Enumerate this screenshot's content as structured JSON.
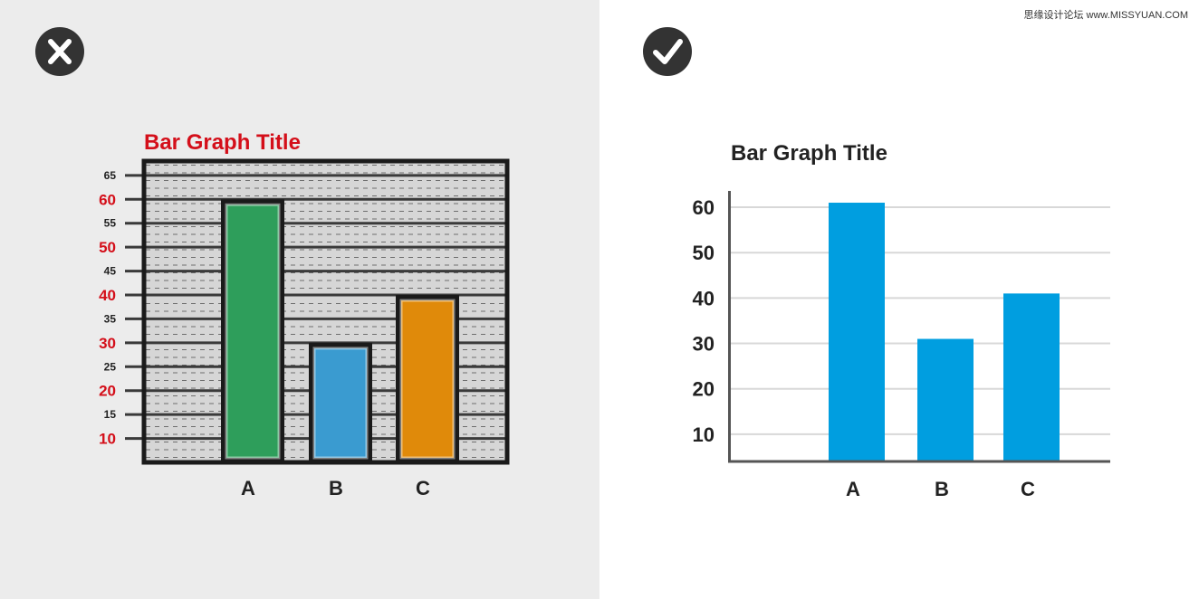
{
  "watermark": "思缘设计论坛 www.MISSYUAN.COM",
  "colors": {
    "bad_background": "#ececec",
    "good_background": "#ffffff",
    "badge": "#333333",
    "bad_title": "#d40f1a",
    "bad_bars": [
      "#2e9e5b",
      "#3a9bd0",
      "#e08a0a"
    ],
    "good_bar": "#009ee0",
    "good_text": "#222222"
  },
  "bad_example": {
    "icon": "cross-icon",
    "chart_data": {
      "type": "bar",
      "title": "Bar Graph Title",
      "categories": [
        "A",
        "B",
        "C"
      ],
      "values": [
        60,
        30,
        40
      ],
      "ylim": [
        5,
        68
      ],
      "yticks": [
        {
          "label": "65",
          "value": 65,
          "major": false
        },
        {
          "label": "60",
          "value": 60,
          "major": true
        },
        {
          "label": "55",
          "value": 55,
          "major": false
        },
        {
          "label": "50",
          "value": 50,
          "major": true
        },
        {
          "label": "45",
          "value": 45,
          "major": false
        },
        {
          "label": "40",
          "value": 40,
          "major": true
        },
        {
          "label": "35",
          "value": 35,
          "major": false
        },
        {
          "label": "30",
          "value": 30,
          "major": true
        },
        {
          "label": "25",
          "value": 25,
          "major": false
        },
        {
          "label": "20",
          "value": 20,
          "major": true
        },
        {
          "label": "15",
          "value": 15,
          "major": false
        },
        {
          "label": "10",
          "value": 10,
          "major": true
        }
      ],
      "grid": true
    }
  },
  "good_example": {
    "icon": "checkmark-icon",
    "chart_data": {
      "type": "bar",
      "title": "Bar Graph Title",
      "categories": [
        "A",
        "B",
        "C"
      ],
      "values": [
        61,
        31,
        41
      ],
      "ylim": [
        4,
        62
      ],
      "yticks": [
        {
          "label": "60",
          "value": 60
        },
        {
          "label": "50",
          "value": 50
        },
        {
          "label": "40",
          "value": 40
        },
        {
          "label": "30",
          "value": 30
        },
        {
          "label": "20",
          "value": 20
        },
        {
          "label": "10",
          "value": 10
        }
      ],
      "grid": true
    }
  }
}
